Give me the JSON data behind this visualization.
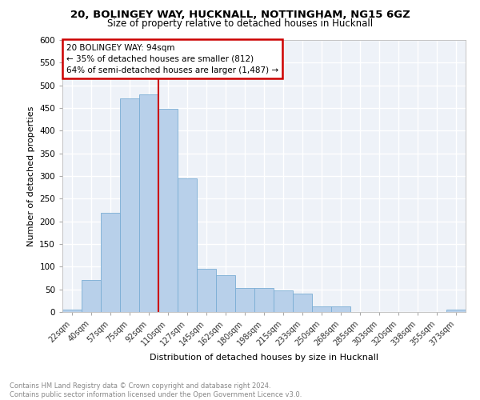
{
  "title1": "20, BOLINGEY WAY, HUCKNALL, NOTTINGHAM, NG15 6GZ",
  "title2": "Size of property relative to detached houses in Hucknall",
  "xlabel": "Distribution of detached houses by size in Hucknall",
  "ylabel": "Number of detached properties",
  "categories": [
    "22sqm",
    "40sqm",
    "57sqm",
    "75sqm",
    "92sqm",
    "110sqm",
    "127sqm",
    "145sqm",
    "162sqm",
    "180sqm",
    "198sqm",
    "215sqm",
    "233sqm",
    "250sqm",
    "268sqm",
    "285sqm",
    "303sqm",
    "320sqm",
    "338sqm",
    "355sqm",
    "373sqm"
  ],
  "values": [
    5,
    70,
    218,
    472,
    480,
    448,
    295,
    95,
    82,
    53,
    53,
    47,
    40,
    12,
    12,
    0,
    0,
    0,
    0,
    0,
    5
  ],
  "bar_color": "#b8d0ea",
  "bar_edge_color": "#7aadd4",
  "highlight_box_text": "20 BOLINGEY WAY: 94sqm\n← 35% of detached houses are smaller (812)\n64% of semi-detached houses are larger (1,487) →",
  "highlight_box_color": "#cc0000",
  "ylim": [
    0,
    600
  ],
  "yticks": [
    0,
    50,
    100,
    150,
    200,
    250,
    300,
    350,
    400,
    450,
    500,
    550,
    600
  ],
  "footer_text": "Contains HM Land Registry data © Crown copyright and database right 2024.\nContains public sector information licensed under the Open Government Licence v3.0.",
  "bg_color": "#eef2f8",
  "grid_color": "#ffffff"
}
